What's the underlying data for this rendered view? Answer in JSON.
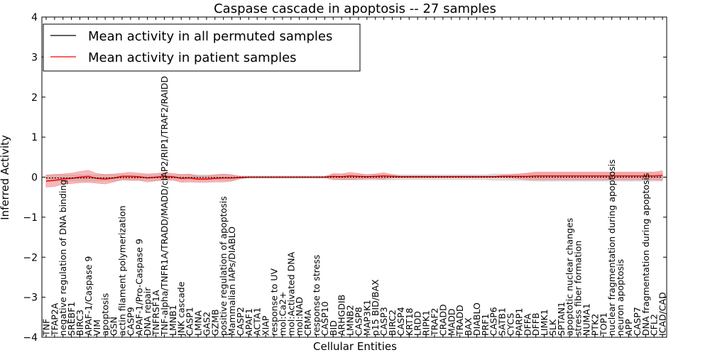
{
  "chart_data": {
    "type": "line",
    "title": "Caspase cascade in apoptosis -- 27 samples",
    "xlabel": "Cellular Entities",
    "ylabel": "Inferred Activity",
    "ylim": [
      -4,
      4
    ],
    "yticks": [
      -4,
      -3,
      -2,
      -1,
      0,
      1,
      2,
      3,
      4
    ],
    "ytick_labels": [
      "−4",
      "−3",
      "−2",
      "−1",
      "0",
      "1",
      "2",
      "3",
      "4"
    ],
    "legend_position": "top-left",
    "categories": [
      "TNF",
      "TFAP2A",
      "negative regulation of DNA binding",
      "SREBF1",
      "BIRC3",
      "APAF-1/Caspase 9",
      "VIM",
      "apoptosis",
      "GSN",
      "actin filament polymerization",
      "CASP9",
      "APAF-1/Pro-Caspase 9",
      "DNA repair",
      "TNFRSF1A",
      "TNF-alpha/TNFR1A/TRADD/MADD/cIAP2/RIP1/TRAF2/RAIDD",
      "LMNB1",
      "JNK cascade",
      "CASP1",
      "LMNA",
      "GAS2",
      "GZMB",
      "positive regulation of apoptosis",
      "Mammalian IAPs/DIABLO",
      "CASP2",
      "APAF1",
      "ACTA1",
      "XIAP",
      "response to UV",
      "mol:Ca2+",
      "mol:Activated DNA",
      "mol:NAD",
      "CRMA",
      "response to stress",
      "CASP10",
      "BID",
      "ARHGDIB",
      "LMNB2",
      "CASP8",
      "MAP3K1",
      "p15 BID/BAX",
      "CASP3",
      "BIRC2",
      "CASP4",
      "KRT18",
      "LRDD",
      "RIPK1",
      "TRAF2",
      "CRADD",
      "MADD",
      "TRADD",
      "BAX",
      "DIABLO",
      "PRF1",
      "CASP6",
      "SATB1",
      "CYCS",
      "PARP1",
      "DFFA",
      "DFFB",
      "LIMK1",
      "SLK",
      "SPTAN1",
      "apoptotic nuclear changes",
      "stress fiber formation",
      "NUMA1",
      "PTK2",
      "TOP1",
      "nuclear fragmentation during apoptosis",
      "neuron apoptosis",
      "APP",
      "CASP7",
      "DNA fragmentation during apoptosis",
      "CFL2",
      "ICAD/CAD"
    ],
    "series": [
      {
        "name": "Mean activity in all permuted samples",
        "color": "#000000",
        "band_color": "#c8c8c8",
        "values": [
          -0.02,
          -0.02,
          -0.02,
          -0.02,
          -0.02,
          -0.02,
          -0.02,
          -0.02,
          -0.02,
          -0.01,
          -0.01,
          -0.01,
          -0.01,
          -0.01,
          -0.01,
          -0.01,
          -0.01,
          -0.01,
          -0.01,
          -0.01,
          -0.01,
          -0.01,
          -0.01,
          0,
          0,
          0,
          0,
          0,
          0,
          0,
          0,
          0,
          0,
          0,
          0,
          0,
          0,
          0,
          0,
          0,
          0,
          0,
          0,
          0,
          0,
          0,
          0,
          0,
          0,
          0,
          0,
          0,
          0,
          0,
          0,
          0,
          0,
          0,
          0,
          0,
          0,
          0,
          0,
          0,
          0,
          0,
          0,
          0,
          0,
          0,
          0,
          0,
          0,
          0
        ],
        "std": [
          0.08,
          0.08,
          0.08,
          0.08,
          0.08,
          0.08,
          0.08,
          0.08,
          0.08,
          0.07,
          0.07,
          0.07,
          0.07,
          0.07,
          0.07,
          0.07,
          0.07,
          0.07,
          0.07,
          0.07,
          0.07,
          0.07,
          0.07,
          0.03,
          0.03,
          0.03,
          0.03,
          0.03,
          0.03,
          0.03,
          0.03,
          0.03,
          0.03,
          0.03,
          0.07,
          0.07,
          0.07,
          0.07,
          0.07,
          0.07,
          0.07,
          0.07,
          0.06,
          0.06,
          0.06,
          0.06,
          0.06,
          0.06,
          0.06,
          0.06,
          0.06,
          0.06,
          0.06,
          0.08,
          0.08,
          0.08,
          0.08,
          0.09,
          0.1,
          0.1,
          0.1,
          0.1,
          0.1,
          0.1,
          0.1,
          0.1,
          0.1,
          0.1,
          0.1,
          0.1,
          0.1,
          0.1,
          0.1,
          0.1
        ]
      },
      {
        "name": "Mean activity in patient samples",
        "color": "#ff0000",
        "band_color": "#f08080",
        "values": [
          -0.1,
          -0.08,
          -0.05,
          -0.03,
          0,
          0.02,
          -0.03,
          -0.05,
          -0.02,
          0.02,
          0.02,
          0.01,
          -0.02,
          0,
          0.02,
          0.01,
          -0.03,
          -0.02,
          -0.05,
          -0.05,
          -0.03,
          -0.02,
          -0.02,
          -0.01,
          0,
          0,
          0,
          0,
          0,
          0,
          0,
          0,
          0,
          0,
          0.02,
          0.01,
          0.03,
          0.02,
          0.01,
          0.02,
          0.03,
          0.02,
          0.01,
          0.01,
          0.01,
          0.01,
          0.01,
          0.01,
          0.01,
          0.01,
          0.01,
          0.01,
          0.01,
          0.01,
          0.02,
          0.02,
          0.02,
          0.02,
          0.03,
          0.03,
          0.03,
          0.03,
          0.03,
          0.03,
          0.03,
          0.03,
          0.03,
          0.03,
          0.03,
          0.03,
          0.03,
          0.03,
          0.03,
          0.04
        ],
        "std": [
          0.15,
          0.15,
          0.13,
          0.13,
          0.14,
          0.15,
          0.12,
          0.12,
          0.1,
          0.08,
          0.1,
          0.09,
          0.1,
          0.09,
          0.1,
          0.08,
          0.1,
          0.1,
          0.08,
          0.08,
          0.09,
          0.1,
          0.08,
          0.03,
          0.01,
          0.01,
          0.01,
          0.01,
          0.01,
          0.01,
          0.01,
          0.01,
          0.01,
          0.01,
          0.07,
          0.07,
          0.09,
          0.07,
          0.05,
          0.06,
          0.08,
          0.04,
          0.02,
          0.02,
          0.02,
          0.02,
          0.02,
          0.02,
          0.02,
          0.02,
          0.02,
          0.02,
          0.02,
          0.02,
          0.03,
          0.04,
          0.06,
          0.08,
          0.1,
          0.1,
          0.1,
          0.1,
          0.1,
          0.1,
          0.1,
          0.1,
          0.1,
          0.1,
          0.1,
          0.1,
          0.1,
          0.1,
          0.1,
          0.12
        ]
      }
    ]
  }
}
